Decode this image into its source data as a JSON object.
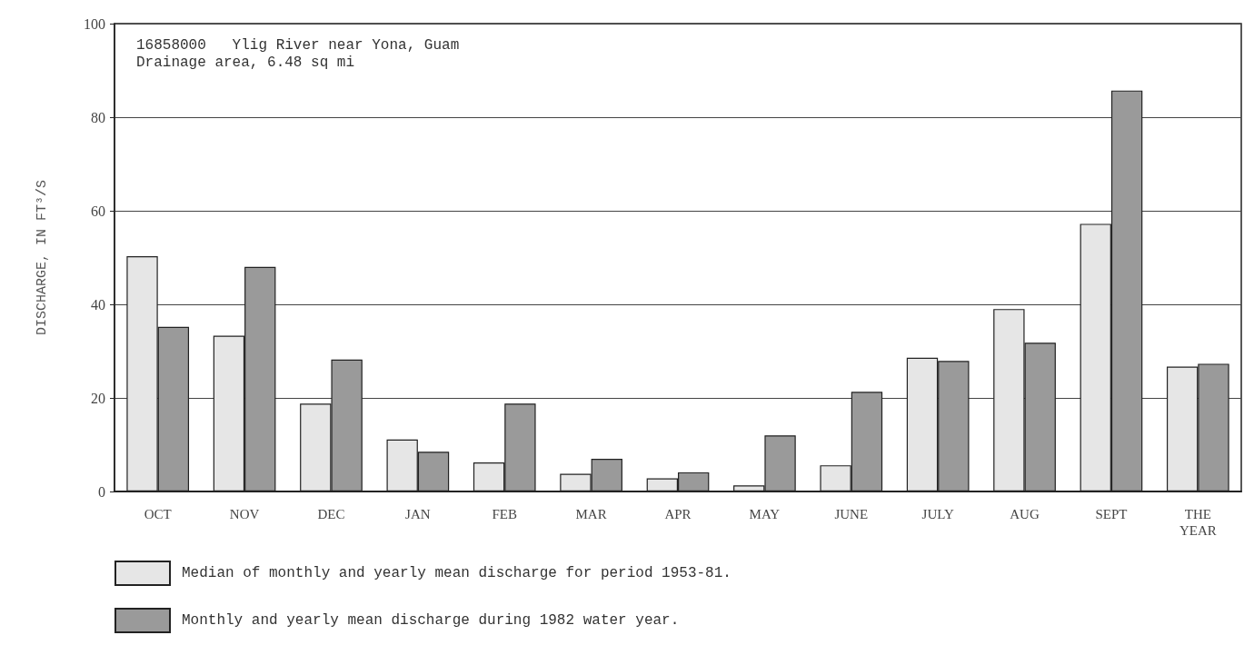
{
  "chart_data": {
    "type": "bar",
    "categories": [
      "OCT",
      "NOV",
      "DEC",
      "JAN",
      "FEB",
      "MAR",
      "APR",
      "MAY",
      "JUNE",
      "JULY",
      "AUG",
      "SEPT",
      "THE\nYEAR"
    ],
    "series": [
      {
        "name": "Median of monthly and yearly mean discharge for period 1953-81.",
        "color": "#e6e6e6",
        "values": [
          50.3,
          33.3,
          18.8,
          11.1,
          6.2,
          3.8,
          2.8,
          1.3,
          5.6,
          28.6,
          39,
          57.2,
          26.7
        ]
      },
      {
        "name": "Monthly and yearly mean discharge during 1982 water year.",
        "color": "#9a9a9a",
        "values": [
          35.2,
          48,
          28.2,
          8.5,
          18.8,
          7,
          4.1,
          12,
          21.3,
          27.9,
          31.8,
          85.7,
          27.3
        ]
      }
    ],
    "ylabel": "DISCHARGE, IN FT³/S",
    "ylim": [
      0,
      100
    ],
    "yticks": [
      0,
      20,
      40,
      60,
      80,
      100
    ],
    "grid": "y",
    "legend": "bottom",
    "annotations": [
      "16858000   Ylig River near Yona, Guam",
      "Drainage area, 6.48 sq mi"
    ]
  }
}
